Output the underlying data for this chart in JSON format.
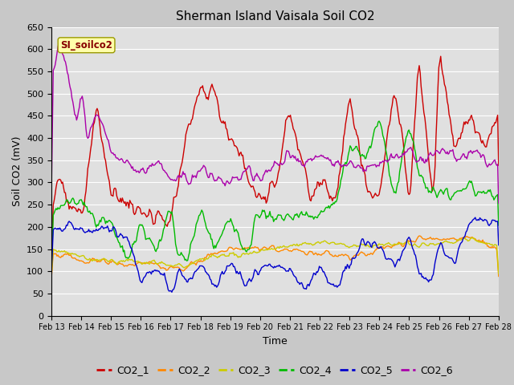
{
  "title": "Sherman Island Vaisala Soil CO2",
  "ylabel": "Soil CO2 (mV)",
  "xlabel": "Time",
  "ylim": [
    0,
    650
  ],
  "xtick_labels": [
    "Feb 13",
    "Feb 14",
    "Feb 15",
    "Feb 16",
    "Feb 17",
    "Feb 18",
    "Feb 19",
    "Feb 20",
    "Feb 21",
    "Feb 22",
    "Feb 23",
    "Feb 24",
    "Feb 25",
    "Feb 26",
    "Feb 27",
    "Feb 28"
  ],
  "ytick_values": [
    0,
    50,
    100,
    150,
    200,
    250,
    300,
    350,
    400,
    450,
    500,
    550,
    600,
    650
  ],
  "series_colors": [
    "#cc0000",
    "#ff8800",
    "#cccc00",
    "#00bb00",
    "#0000cc",
    "#aa00aa"
  ],
  "series_names": [
    "CO2_1",
    "CO2_2",
    "CO2_3",
    "CO2_4",
    "CO2_5",
    "CO2_6"
  ],
  "annotation_text": "SI_soilco2",
  "annotation_color": "#880000",
  "annotation_bg": "#ffffaa",
  "fig_bg": "#c8c8c8",
  "plot_bg": "#e0e0e0",
  "title_fontsize": 11,
  "axis_fontsize": 9,
  "tick_fontsize": 8,
  "legend_fontsize": 9
}
